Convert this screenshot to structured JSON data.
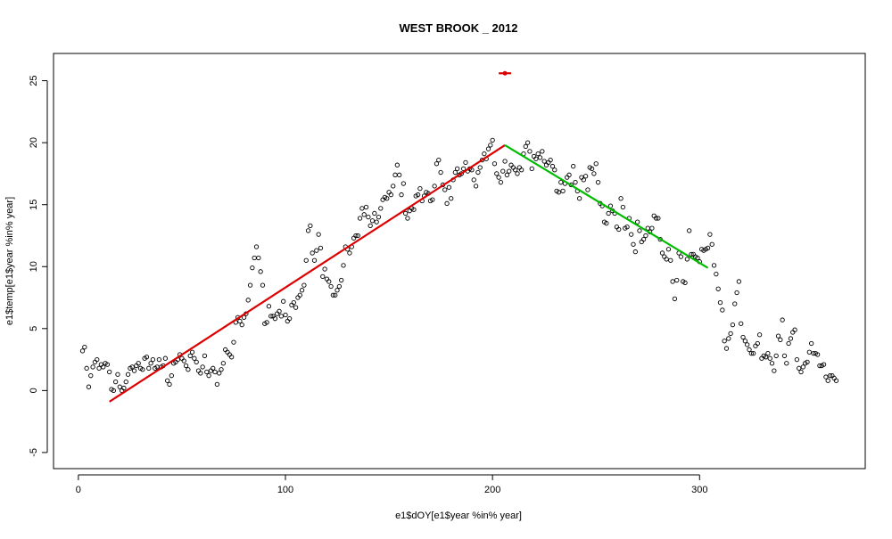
{
  "chart_data": {
    "type": "scatter",
    "title": "WEST BROOK _ 2012",
    "xlabel": "e1$dOY[e1$year %in% year]",
    "ylabel": "e1$temp[e1$year %in% year]",
    "xlim": [
      -12,
      380
    ],
    "ylim": [
      -6.3,
      27.2
    ],
    "xticks": [
      "0",
      "100",
      "200",
      "300"
    ],
    "yticks": [
      "-5",
      "0",
      "5",
      "10",
      "15",
      "20",
      "25"
    ],
    "grid": false,
    "legend": "none",
    "colors": {
      "points": "#000000",
      "rising_fit": "#dd0000",
      "falling_fit": "#00bb00",
      "marker": "#dd0000"
    },
    "points": [
      [
        2,
        3.2
      ],
      [
        3,
        3.5
      ],
      [
        4,
        1.8
      ],
      [
        5,
        0.3
      ],
      [
        6,
        1.2
      ],
      [
        7,
        1.9
      ],
      [
        8,
        2.3
      ],
      [
        9,
        2.5
      ],
      [
        10,
        1.8
      ],
      [
        11,
        2.1
      ],
      [
        12,
        1.9
      ],
      [
        13,
        2.2
      ],
      [
        14,
        2.1
      ],
      [
        15,
        1.5
      ],
      [
        16,
        0.1
      ],
      [
        17,
        0.0
      ],
      [
        18,
        0.7
      ],
      [
        19,
        1.3
      ],
      [
        20,
        0.3
      ],
      [
        21,
        0.0
      ],
      [
        22,
        0.2
      ],
      [
        23,
        0.7
      ],
      [
        24,
        1.3
      ],
      [
        25,
        1.8
      ],
      [
        26,
        1.9
      ],
      [
        27,
        1.6
      ],
      [
        28,
        2.0
      ],
      [
        29,
        2.2
      ],
      [
        30,
        1.8
      ],
      [
        31,
        1.7
      ],
      [
        32,
        2.6
      ],
      [
        33,
        2.7
      ],
      [
        34,
        1.8
      ],
      [
        35,
        2.2
      ],
      [
        36,
        2.5
      ],
      [
        37,
        1.8
      ],
      [
        38,
        1.9
      ],
      [
        39,
        2.5
      ],
      [
        40,
        1.9
      ],
      [
        41,
        2.0
      ],
      [
        42,
        2.6
      ],
      [
        43,
        0.8
      ],
      [
        44,
        0.5
      ],
      [
        45,
        1.2
      ],
      [
        46,
        2.2
      ],
      [
        47,
        2.3
      ],
      [
        48,
        2.5
      ],
      [
        49,
        2.9
      ],
      [
        50,
        2.6
      ],
      [
        51,
        2.4
      ],
      [
        52,
        2.0
      ],
      [
        53,
        1.7
      ],
      [
        54,
        2.8
      ],
      [
        55,
        3.1
      ],
      [
        56,
        2.6
      ],
      [
        57,
        2.3
      ],
      [
        58,
        1.6
      ],
      [
        59,
        1.4
      ],
      [
        60,
        1.9
      ],
      [
        61,
        2.8
      ],
      [
        62,
        1.5
      ],
      [
        63,
        1.2
      ],
      [
        64,
        1.6
      ],
      [
        65,
        1.8
      ],
      [
        66,
        1.5
      ],
      [
        67,
        0.5
      ],
      [
        68,
        1.4
      ],
      [
        69,
        1.7
      ],
      [
        70,
        2.2
      ],
      [
        71,
        3.3
      ],
      [
        72,
        3.1
      ],
      [
        73,
        2.9
      ],
      [
        74,
        2.7
      ],
      [
        75,
        3.9
      ],
      [
        76,
        5.5
      ],
      [
        77,
        5.9
      ],
      [
        78,
        5.6
      ],
      [
        79,
        5.3
      ],
      [
        80,
        5.9
      ],
      [
        81,
        6.2
      ],
      [
        82,
        7.3
      ],
      [
        83,
        8.5
      ],
      [
        84,
        9.9
      ],
      [
        85,
        10.7
      ],
      [
        86,
        11.6
      ],
      [
        87,
        10.7
      ],
      [
        88,
        9.6
      ],
      [
        89,
        8.5
      ],
      [
        90,
        5.4
      ],
      [
        91,
        5.5
      ],
      [
        92,
        6.8
      ],
      [
        93,
        6.0
      ],
      [
        94,
        6.0
      ],
      [
        95,
        5.8
      ],
      [
        96,
        6.2
      ],
      [
        97,
        6.4
      ],
      [
        98,
        6.0
      ],
      [
        99,
        7.2
      ],
      [
        100,
        6.1
      ],
      [
        101,
        5.6
      ],
      [
        102,
        5.8
      ],
      [
        103,
        6.9
      ],
      [
        104,
        7.1
      ],
      [
        105,
        6.7
      ],
      [
        106,
        7.5
      ],
      [
        107,
        7.7
      ],
      [
        108,
        8.1
      ],
      [
        109,
        8.5
      ],
      [
        110,
        10.5
      ],
      [
        111,
        12.9
      ],
      [
        112,
        13.3
      ],
      [
        113,
        11.1
      ],
      [
        114,
        10.5
      ],
      [
        115,
        11.3
      ],
      [
        116,
        12.6
      ],
      [
        117,
        11.5
      ],
      [
        118,
        9.2
      ],
      [
        119,
        9.8
      ],
      [
        120,
        9.0
      ],
      [
        121,
        8.8
      ],
      [
        122,
        8.4
      ],
      [
        123,
        7.7
      ],
      [
        124,
        7.7
      ],
      [
        125,
        8.1
      ],
      [
        126,
        8.4
      ],
      [
        127,
        8.9
      ],
      [
        128,
        10.1
      ],
      [
        129,
        11.6
      ],
      [
        130,
        11.4
      ],
      [
        131,
        11.1
      ],
      [
        132,
        11.6
      ],
      [
        133,
        12.3
      ],
      [
        134,
        12.5
      ],
      [
        135,
        12.5
      ],
      [
        136,
        13.9
      ],
      [
        137,
        14.7
      ],
      [
        138,
        14.2
      ],
      [
        139,
        14.8
      ],
      [
        140,
        14.0
      ],
      [
        141,
        13.3
      ],
      [
        142,
        13.7
      ],
      [
        143,
        14.3
      ],
      [
        144,
        13.6
      ],
      [
        145,
        14.0
      ],
      [
        146,
        14.7
      ],
      [
        147,
        15.4
      ],
      [
        148,
        15.6
      ],
      [
        149,
        15.5
      ],
      [
        150,
        16.0
      ],
      [
        151,
        15.8
      ],
      [
        152,
        16.5
      ],
      [
        153,
        17.4
      ],
      [
        154,
        18.2
      ],
      [
        155,
        17.4
      ],
      [
        156,
        15.8
      ],
      [
        157,
        16.7
      ],
      [
        158,
        14.3
      ],
      [
        159,
        13.9
      ],
      [
        160,
        14.5
      ],
      [
        161,
        14.7
      ],
      [
        162,
        14.6
      ],
      [
        163,
        15.7
      ],
      [
        164,
        15.8
      ],
      [
        165,
        16.3
      ],
      [
        166,
        15.3
      ],
      [
        167,
        15.7
      ],
      [
        168,
        16.0
      ],
      [
        169,
        15.9
      ],
      [
        170,
        15.3
      ],
      [
        171,
        15.4
      ],
      [
        172,
        16.5
      ],
      [
        173,
        18.3
      ],
      [
        174,
        18.6
      ],
      [
        175,
        17.6
      ],
      [
        176,
        16.6
      ],
      [
        177,
        16.2
      ],
      [
        178,
        15.1
      ],
      [
        179,
        16.4
      ],
      [
        180,
        15.5
      ],
      [
        181,
        17.0
      ],
      [
        182,
        17.6
      ],
      [
        183,
        17.9
      ],
      [
        184,
        17.4
      ],
      [
        185,
        17.5
      ],
      [
        186,
        17.9
      ],
      [
        187,
        18.4
      ],
      [
        188,
        17.7
      ],
      [
        189,
        17.9
      ],
      [
        190,
        17.8
      ],
      [
        191,
        17.0
      ],
      [
        192,
        16.5
      ],
      [
        193,
        17.6
      ],
      [
        194,
        18.0
      ],
      [
        195,
        18.6
      ],
      [
        196,
        19.1
      ],
      [
        197,
        18.7
      ],
      [
        198,
        19.5
      ],
      [
        199,
        19.8
      ],
      [
        200,
        20.2
      ],
      [
        201,
        18.3
      ],
      [
        202,
        17.5
      ],
      [
        203,
        17.2
      ],
      [
        204,
        16.8
      ],
      [
        205,
        17.7
      ],
      [
        206,
        18.5
      ],
      [
        207,
        17.4
      ],
      [
        208,
        17.7
      ],
      [
        209,
        18.2
      ],
      [
        210,
        18.0
      ],
      [
        211,
        17.8
      ],
      [
        212,
        17.5
      ],
      [
        213,
        18.0
      ],
      [
        214,
        17.8
      ],
      [
        215,
        19.1
      ],
      [
        216,
        19.7
      ],
      [
        217,
        20.0
      ],
      [
        218,
        19.3
      ],
      [
        219,
        17.9
      ],
      [
        220,
        18.9
      ],
      [
        221,
        18.7
      ],
      [
        222,
        19.1
      ],
      [
        223,
        18.8
      ],
      [
        224,
        19.3
      ],
      [
        225,
        18.5
      ],
      [
        226,
        18.2
      ],
      [
        227,
        18.4
      ],
      [
        228,
        18.6
      ],
      [
        229,
        18.1
      ],
      [
        230,
        17.8
      ],
      [
        231,
        16.1
      ],
      [
        232,
        16.0
      ],
      [
        233,
        16.8
      ],
      [
        234,
        16.1
      ],
      [
        235,
        16.7
      ],
      [
        236,
        17.2
      ],
      [
        237,
        17.4
      ],
      [
        238,
        16.6
      ],
      [
        239,
        18.1
      ],
      [
        240,
        16.8
      ],
      [
        241,
        16.1
      ],
      [
        242,
        15.5
      ],
      [
        243,
        17.2
      ],
      [
        244,
        17.0
      ],
      [
        245,
        17.3
      ],
      [
        246,
        16.2
      ],
      [
        247,
        18.0
      ],
      [
        248,
        17.9
      ],
      [
        249,
        17.5
      ],
      [
        250,
        18.3
      ],
      [
        251,
        16.8
      ],
      [
        252,
        15.1
      ],
      [
        253,
        14.9
      ],
      [
        254,
        13.6
      ],
      [
        255,
        13.5
      ],
      [
        256,
        14.3
      ],
      [
        257,
        14.9
      ],
      [
        258,
        14.5
      ],
      [
        259,
        14.3
      ],
      [
        260,
        13.2
      ],
      [
        261,
        13.0
      ],
      [
        262,
        15.5
      ],
      [
        263,
        14.8
      ],
      [
        264,
        13.1
      ],
      [
        265,
        13.2
      ],
      [
        266,
        13.9
      ],
      [
        267,
        12.6
      ],
      [
        268,
        11.8
      ],
      [
        269,
        11.2
      ],
      [
        270,
        13.6
      ],
      [
        271,
        12.9
      ],
      [
        272,
        12.0
      ],
      [
        273,
        12.2
      ],
      [
        274,
        12.5
      ],
      [
        275,
        13.1
      ],
      [
        276,
        12.8
      ],
      [
        277,
        13.1
      ],
      [
        278,
        14.1
      ],
      [
        279,
        13.9
      ],
      [
        280,
        13.9
      ],
      [
        281,
        12.2
      ],
      [
        282,
        11.1
      ],
      [
        283,
        10.8
      ],
      [
        284,
        10.6
      ],
      [
        285,
        11.4
      ],
      [
        286,
        10.5
      ],
      [
        287,
        8.8
      ],
      [
        288,
        7.4
      ],
      [
        289,
        8.9
      ],
      [
        290,
        11.1
      ],
      [
        291,
        10.8
      ],
      [
        292,
        8.8
      ],
      [
        293,
        8.7
      ],
      [
        294,
        10.6
      ],
      [
        295,
        12.9
      ],
      [
        296,
        11.0
      ],
      [
        297,
        11.0
      ],
      [
        298,
        10.8
      ],
      [
        299,
        10.7
      ],
      [
        300,
        10.4
      ],
      [
        301,
        11.4
      ],
      [
        302,
        11.3
      ],
      [
        303,
        11.4
      ],
      [
        304,
        11.5
      ],
      [
        305,
        12.6
      ],
      [
        306,
        11.8
      ],
      [
        307,
        10.1
      ],
      [
        308,
        9.4
      ],
      [
        309,
        8.2
      ],
      [
        310,
        7.1
      ],
      [
        311,
        6.5
      ],
      [
        312,
        4.0
      ],
      [
        313,
        3.4
      ],
      [
        314,
        4.2
      ],
      [
        315,
        4.6
      ],
      [
        316,
        5.3
      ],
      [
        317,
        7.0
      ],
      [
        318,
        7.9
      ],
      [
        319,
        8.8
      ],
      [
        320,
        5.4
      ],
      [
        321,
        4.3
      ],
      [
        322,
        4.0
      ],
      [
        323,
        3.7
      ],
      [
        324,
        3.3
      ],
      [
        325,
        3.0
      ],
      [
        326,
        3.0
      ],
      [
        327,
        3.6
      ],
      [
        328,
        3.8
      ],
      [
        329,
        4.5
      ],
      [
        330,
        2.6
      ],
      [
        331,
        2.8
      ],
      [
        332,
        2.7
      ],
      [
        333,
        3.0
      ],
      [
        334,
        2.6
      ],
      [
        335,
        2.2
      ],
      [
        336,
        1.6
      ],
      [
        337,
        2.8
      ],
      [
        338,
        4.4
      ],
      [
        339,
        4.1
      ],
      [
        340,
        5.7
      ],
      [
        341,
        2.8
      ],
      [
        342,
        2.2
      ],
      [
        343,
        3.8
      ],
      [
        344,
        4.2
      ],
      [
        345,
        4.7
      ],
      [
        346,
        4.9
      ],
      [
        347,
        2.5
      ],
      [
        348,
        1.8
      ],
      [
        349,
        1.5
      ],
      [
        350,
        1.9
      ],
      [
        351,
        2.2
      ],
      [
        352,
        2.3
      ],
      [
        353,
        3.1
      ],
      [
        354,
        3.8
      ],
      [
        355,
        3.0
      ],
      [
        356,
        3.0
      ],
      [
        357,
        2.9
      ],
      [
        358,
        2.0
      ],
      [
        359,
        2.0
      ],
      [
        360,
        2.1
      ],
      [
        361,
        1.1
      ],
      [
        362,
        0.8
      ],
      [
        363,
        1.2
      ],
      [
        364,
        1.2
      ],
      [
        365,
        1.0
      ],
      [
        366,
        0.8
      ]
    ],
    "fit_lines": [
      {
        "from": [
          15,
          -0.9
        ],
        "to": [
          206,
          19.8
        ]
      },
      {
        "from": [
          206,
          19.8
        ],
        "to": [
          304,
          9.9
        ]
      }
    ],
    "marker": {
      "x": 206,
      "y": 25.6,
      "x_range": [
        203,
        209
      ]
    }
  }
}
